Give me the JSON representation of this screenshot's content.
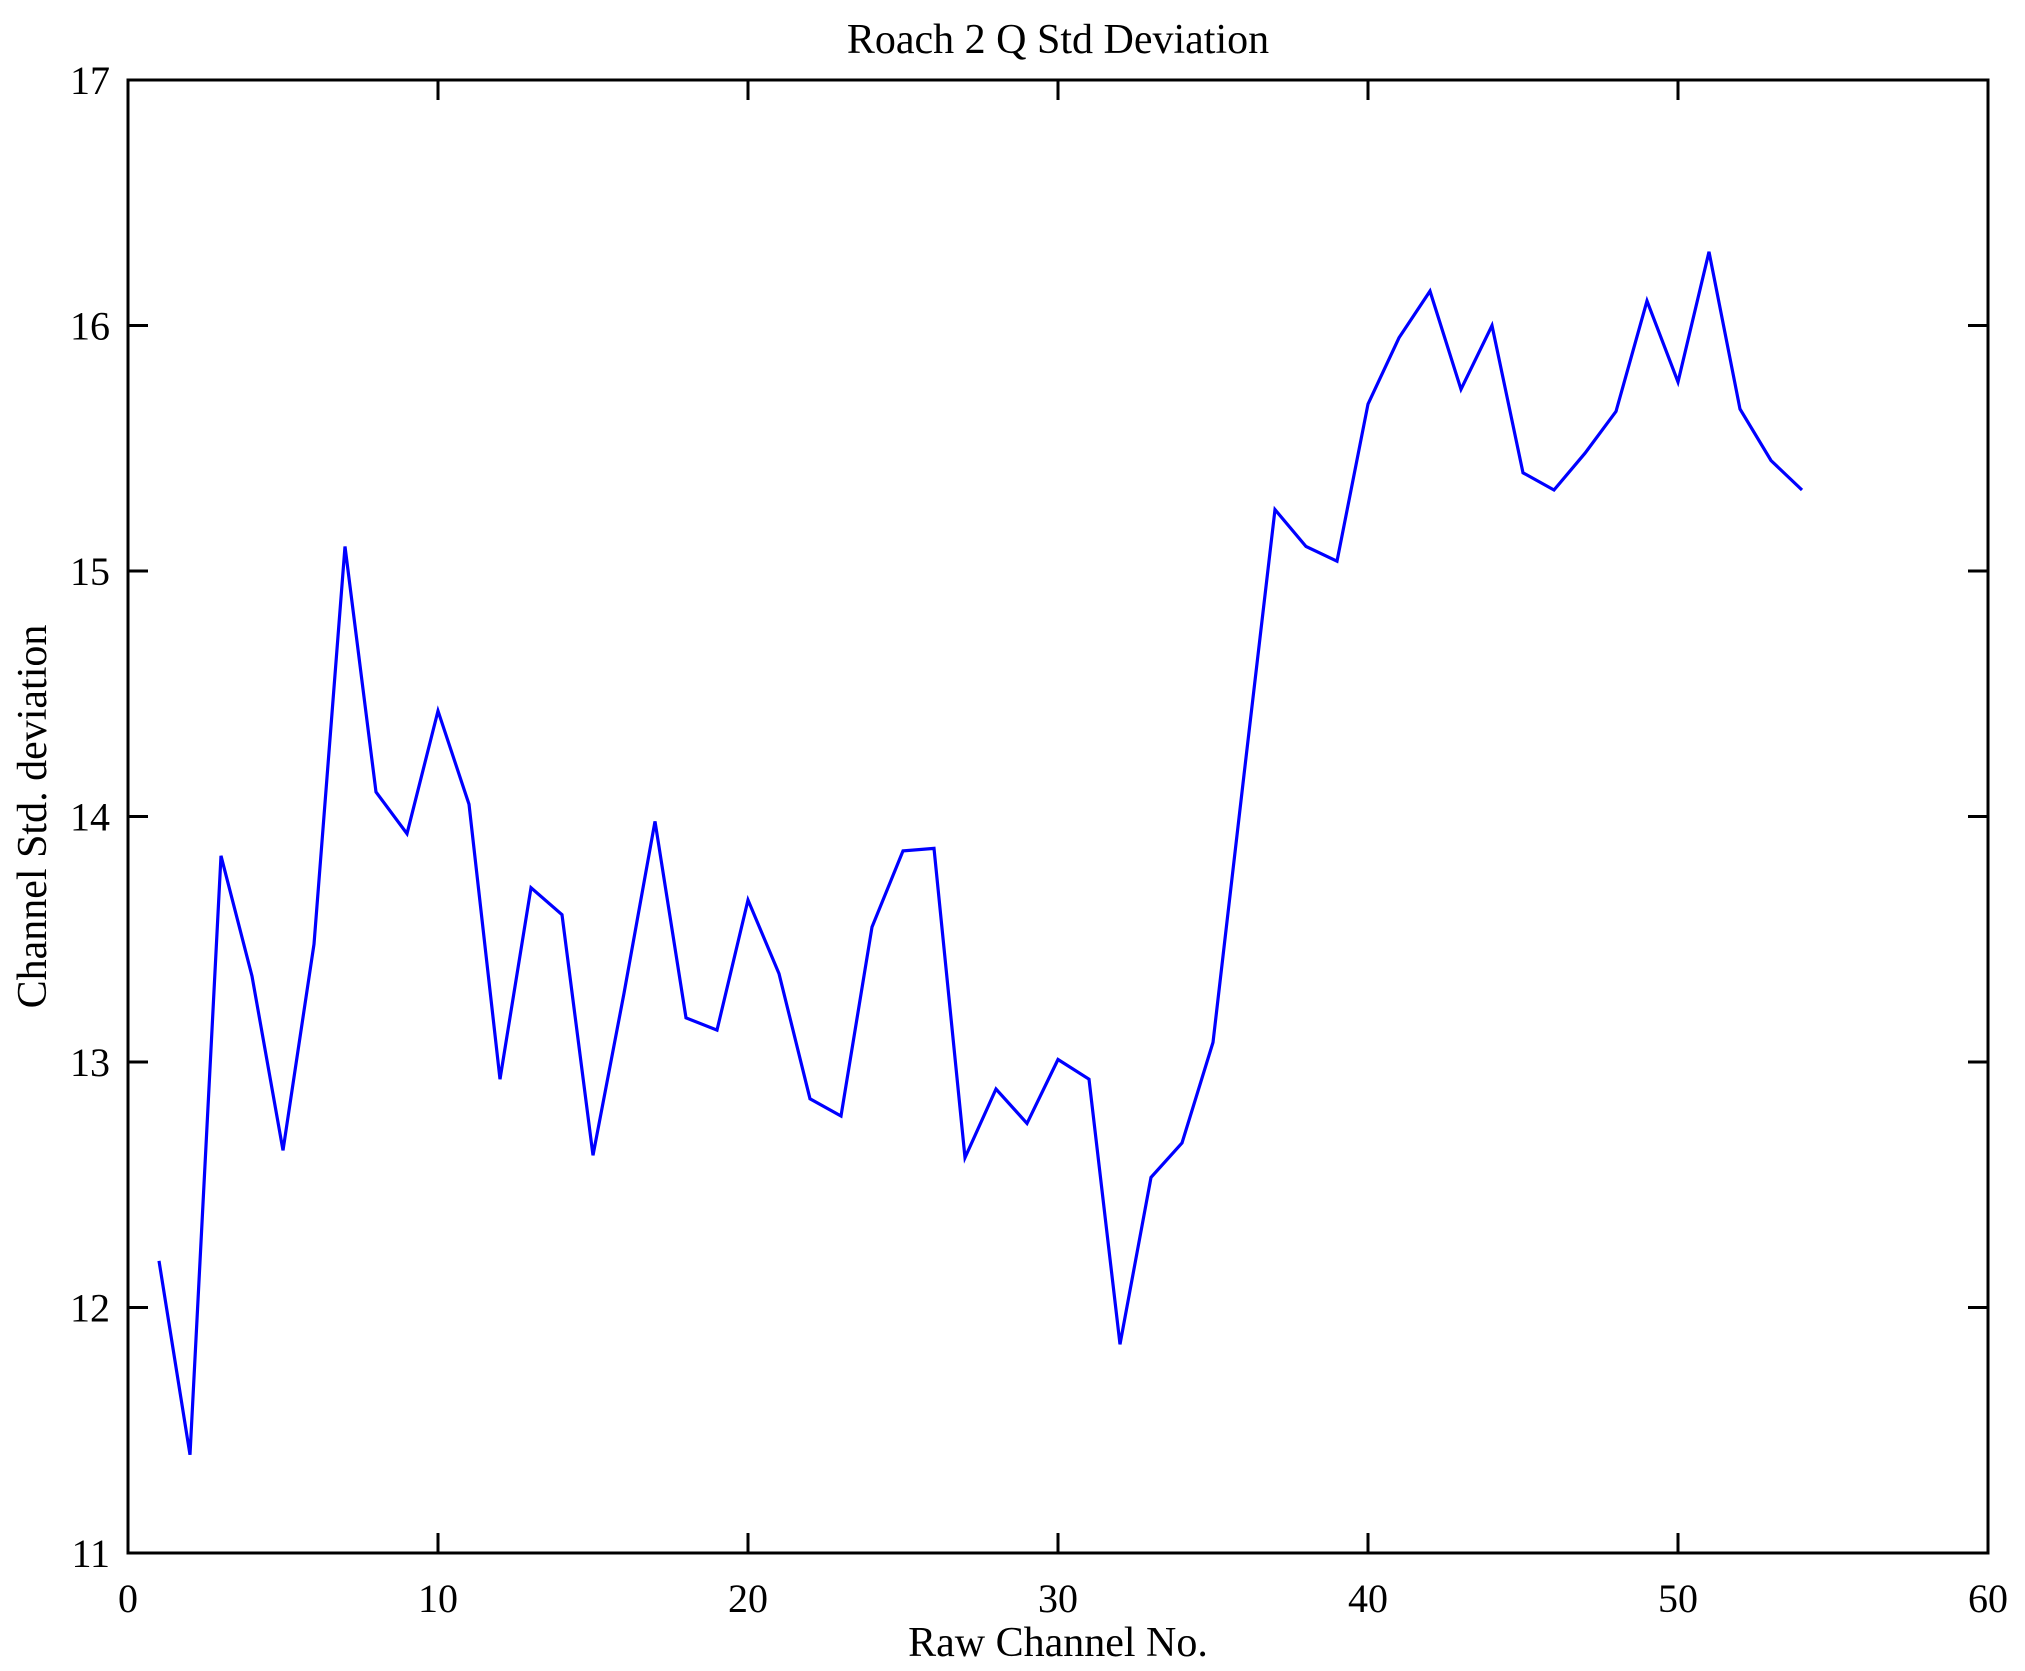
{
  "figure": {
    "background": "#ffffff",
    "axis_color": "#000000"
  },
  "chart_data": {
    "type": "line",
    "title": "Roach 2 Q Std Deviation",
    "xlabel": "Raw Channel No.",
    "ylabel": "Channel Std. deviation",
    "xlim": [
      0,
      60
    ],
    "ylim": [
      11,
      17
    ],
    "xticks": [
      0,
      10,
      20,
      30,
      40,
      50,
      60
    ],
    "yticks": [
      11,
      12,
      13,
      14,
      15,
      16,
      17
    ],
    "xtick_labels": [
      "0",
      "10",
      "20",
      "30",
      "40",
      "50",
      "60"
    ],
    "ytick_labels": [
      "11",
      "12",
      "13",
      "14",
      "15",
      "16",
      "17"
    ],
    "grid": false,
    "legend": null,
    "line_color": "#0000ff",
    "x": [
      1,
      2,
      3,
      4,
      5,
      6,
      7,
      8,
      9,
      10,
      11,
      12,
      13,
      14,
      15,
      16,
      17,
      18,
      19,
      20,
      21,
      22,
      23,
      24,
      25,
      26,
      27,
      28,
      29,
      30,
      31,
      32,
      33,
      34,
      35,
      36,
      37,
      38,
      39,
      40,
      41,
      42,
      43,
      44,
      45,
      46,
      47,
      48,
      49,
      50,
      51,
      52,
      53,
      54
    ],
    "y": [
      12.19,
      11.4,
      13.84,
      13.35,
      12.64,
      13.48,
      15.1,
      14.1,
      13.93,
      14.43,
      14.05,
      12.93,
      13.71,
      13.6,
      12.62,
      13.28,
      13.98,
      13.18,
      13.13,
      13.66,
      13.36,
      12.85,
      12.78,
      13.55,
      13.86,
      13.87,
      12.61,
      12.89,
      12.75,
      13.01,
      12.93,
      11.85,
      12.53,
      12.67,
      13.08,
      14.17,
      15.25,
      15.1,
      15.04,
      15.68,
      15.95,
      16.14,
      15.74,
      16.0,
      15.4,
      15.33,
      15.48,
      15.65,
      16.1,
      15.77,
      16.3,
      15.66,
      15.45,
      15.33
    ]
  }
}
